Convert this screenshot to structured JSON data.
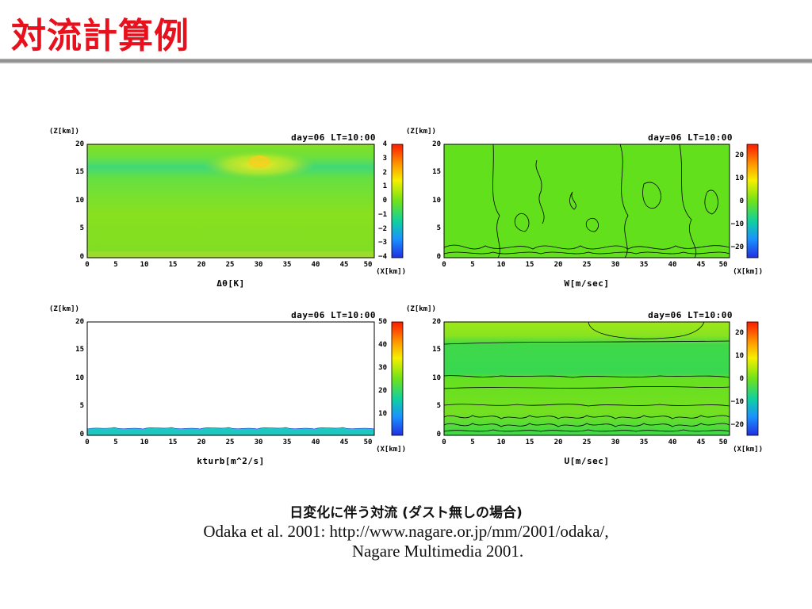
{
  "slide": {
    "title": "対流計算例"
  },
  "panels": [
    {
      "id": "theta",
      "y_axis_title": "(Z[km])",
      "date_label": "day=06  LT=10:00",
      "x_unit": "(X[km])",
      "variable_label": "Δθ[K]",
      "y_ticks": [
        "20",
        "15",
        "10",
        "5",
        "0"
      ],
      "x_ticks": [
        "0",
        "5",
        "10",
        "15",
        "20",
        "25",
        "30",
        "35",
        "40",
        "45",
        "50"
      ],
      "colorbar_ticks": [
        "4",
        "3",
        "2",
        "1",
        "0",
        "−1",
        "−2",
        "−3",
        "−4"
      ],
      "field_color": "#7ee01e"
    },
    {
      "id": "w",
      "y_axis_title": "(Z[km])",
      "date_label": "day=06  LT=10:00",
      "x_unit": "(X[km])",
      "variable_label": "W[m/sec]",
      "y_ticks": [
        "20",
        "15",
        "10",
        "5",
        "0"
      ],
      "x_ticks": [
        "0",
        "5",
        "10",
        "15",
        "20",
        "25",
        "30",
        "35",
        "40",
        "45",
        "50"
      ],
      "colorbar_ticks": [
        "20",
        "10",
        "0",
        "−10",
        "−20"
      ],
      "field_color": "#62e01c"
    },
    {
      "id": "kturb",
      "y_axis_title": "(Z[km])",
      "date_label": "day=06  LT=10:00",
      "x_unit": "(X[km])",
      "variable_label": "kturb[m^2/s]",
      "y_ticks": [
        "20",
        "15",
        "10",
        "5",
        "0"
      ],
      "x_ticks": [
        "0",
        "5",
        "10",
        "15",
        "20",
        "25",
        "30",
        "35",
        "40",
        "45",
        "50"
      ],
      "colorbar_ticks": [
        "50",
        "40",
        "30",
        "20",
        "10"
      ],
      "field_color": "#ffffff"
    },
    {
      "id": "u",
      "y_axis_title": "(Z[km])",
      "date_label": "day=06  LT=10:00",
      "x_unit": "(X[km])",
      "variable_label": "U[m/sec]",
      "y_ticks": [
        "20",
        "15",
        "10",
        "5",
        "0"
      ],
      "x_ticks": [
        "0",
        "5",
        "10",
        "15",
        "20",
        "25",
        "30",
        "35",
        "40",
        "45",
        "50"
      ],
      "colorbar_ticks": [
        "20",
        "10",
        "0",
        "−10",
        "−20"
      ],
      "field_color": "#62e01c"
    }
  ],
  "caption": {
    "japanese": "日変化に伴う対流 (ダスト無しの場合)",
    "reference_line1": "Odaka et al. 2001: http://www.nagare.or.jp/mm/2001/odaka/,",
    "reference_line2": "Nagare Multimedia 2001."
  }
}
